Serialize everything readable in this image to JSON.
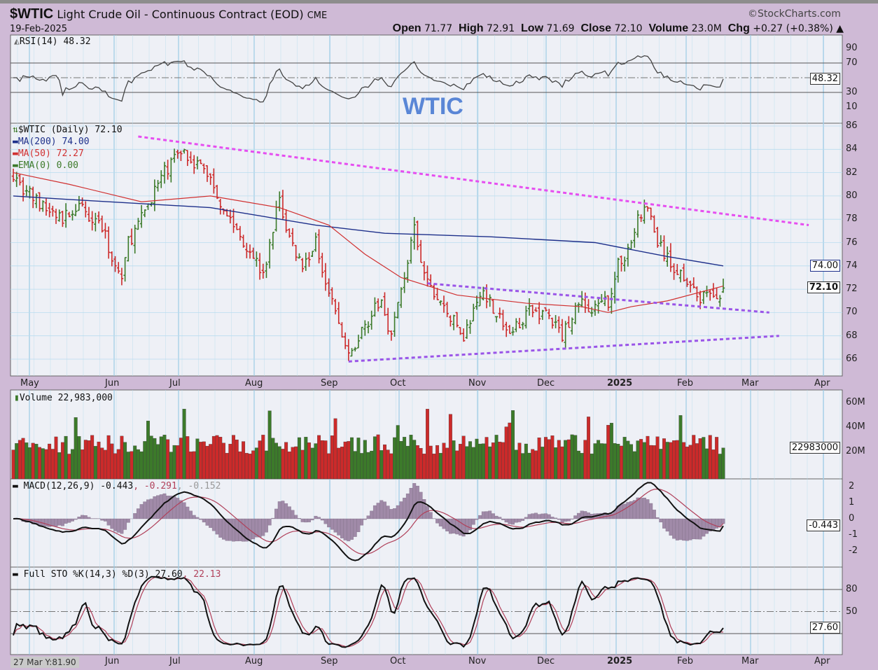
{
  "header": {
    "symbol": "$WTIC",
    "name": "Light Crude Oil - Continuous Contract (EOD)",
    "exchange": "CME",
    "date": "19-Feb-2025",
    "brand": "©StockCharts.com",
    "open_label": "Open",
    "open": "71.77",
    "high_label": "High",
    "high": "72.91",
    "low_label": "Low",
    "low": "71.69",
    "close_label": "Close",
    "close": "72.10",
    "volume_label": "Volume",
    "volume": "23.0M",
    "chg_label": "Chg",
    "chg": "+0.27 (+0.38%) ▲"
  },
  "annotation": "WTIC",
  "crosshair": "27 Mar Y:81.90",
  "colors": {
    "background": "#cfbad6",
    "plot": "#eef0f6",
    "grid": "#b8dcef",
    "up": "#3c7a2a",
    "down": "#cc2a2a",
    "ma200": "#1d2f8a",
    "ma50": "#d03030",
    "resistance": "#e64ef0",
    "channel": "#9a55e8",
    "signal": "#b0405a",
    "hist": "#a08aa8"
  },
  "rsi": {
    "label": "RSI(14) 48.32",
    "value_tag": "48.32",
    "ticks": [
      "90",
      "70",
      "30",
      "10"
    ]
  },
  "price": {
    "label": "$WTIC (Daily) 72.10",
    "ma200_label": "MA(200) 74.00",
    "ma50_label": "MA(50) 72.27",
    "ema_label": "EMA(0) 0.00",
    "ma200_tag": "74.00",
    "close_tag": "72.10",
    "ticks": [
      "86",
      "84",
      "82",
      "80",
      "78",
      "76",
      "74",
      "72",
      "70",
      "68",
      "66"
    ]
  },
  "volume": {
    "label": "Volume 22,983,000",
    "value_tag": "22983000",
    "ticks": [
      "60M",
      "40M",
      "20M"
    ]
  },
  "macd": {
    "label_main": "MACD(12,26,9) -0.443",
    "label_signal": ", -0.291",
    "label_hist": ", -0.152",
    "value_tag": "-0.443",
    "ticks": [
      "2",
      "1",
      "0",
      "-1",
      "-2"
    ]
  },
  "sto": {
    "label_main": "Full STO %K(14,3) %D(3) 27.60",
    "label_d": ", 22.13",
    "value_tag": "27.60",
    "ticks": [
      "80",
      "50"
    ]
  },
  "months": [
    "May",
    "Jun",
    "Jul",
    "Aug",
    "Sep",
    "Oct",
    "Nov",
    "Dec",
    "2025",
    "Feb",
    "Mar",
    "Apr"
  ],
  "chart_data": {
    "type": "candlestick",
    "title": "$WTIC Light Crude Oil - Continuous Contract (EOD) CME",
    "x_unit": "trading day index (May 2024 – 19 Feb 2025)",
    "ylim": [
      65,
      86
    ],
    "key_closes": [
      [
        0,
        82
      ],
      [
        2,
        81
      ],
      [
        9,
        79
      ],
      [
        15,
        78
      ],
      [
        19,
        79
      ],
      [
        26,
        78
      ],
      [
        31,
        74
      ],
      [
        33,
        73
      ],
      [
        35,
        76
      ],
      [
        39,
        78
      ],
      [
        42,
        80
      ],
      [
        46,
        82
      ],
      [
        51,
        84
      ],
      [
        55,
        83
      ],
      [
        59,
        82
      ],
      [
        64,
        79
      ],
      [
        68,
        77
      ],
      [
        73,
        75
      ],
      [
        76,
        73
      ],
      [
        81,
        80
      ],
      [
        83,
        77
      ],
      [
        88,
        74
      ],
      [
        92,
        76
      ],
      [
        96,
        72
      ],
      [
        100,
        68
      ],
      [
        102,
        66
      ],
      [
        107,
        69
      ],
      [
        112,
        71
      ],
      [
        115,
        68
      ],
      [
        118,
        72
      ],
      [
        122,
        77
      ],
      [
        124,
        74
      ],
      [
        127,
        72
      ],
      [
        132,
        70
      ],
      [
        137,
        68
      ],
      [
        143,
        72
      ],
      [
        147,
        70
      ],
      [
        151,
        68
      ],
      [
        156,
        70
      ],
      [
        162,
        70
      ],
      [
        167,
        68
      ],
      [
        172,
        71
      ],
      [
        176,
        70
      ],
      [
        181,
        71
      ],
      [
        184,
        74
      ],
      [
        188,
        76
      ],
      [
        190,
        78
      ],
      [
        193,
        79
      ],
      [
        196,
        76
      ],
      [
        200,
        74
      ],
      [
        205,
        73
      ],
      [
        208,
        71
      ],
      [
        211,
        72
      ],
      [
        213,
        71
      ],
      [
        216,
        72.1
      ]
    ],
    "ma200": [
      [
        0,
        80
      ],
      [
        17,
        79.7
      ],
      [
        60,
        79
      ],
      [
        92,
        77.5
      ],
      [
        113,
        76.8
      ],
      [
        145,
        76.5
      ],
      [
        177,
        76
      ],
      [
        199,
        74.8
      ],
      [
        216,
        74
      ]
    ],
    "ma50": [
      [
        0,
        82
      ],
      [
        17,
        81
      ],
      [
        39,
        79.5
      ],
      [
        60,
        80
      ],
      [
        81,
        79
      ],
      [
        96,
        77.5
      ],
      [
        107,
        75
      ],
      [
        118,
        73
      ],
      [
        135,
        71.5
      ],
      [
        156,
        70.8
      ],
      [
        173,
        70.5
      ],
      [
        181,
        70
      ],
      [
        188,
        70.5
      ],
      [
        199,
        71
      ],
      [
        216,
        72.27
      ]
    ],
    "trendlines": [
      {
        "name": "resistance",
        "from": [
          38,
          85.1
        ],
        "to": [
          242,
          77.5
        ]
      },
      {
        "name": "channel-upper",
        "from": [
          126,
          72.5
        ],
        "to": [
          230,
          70.0
        ]
      },
      {
        "name": "channel-lower",
        "from": [
          102,
          65.8
        ],
        "to": [
          233,
          68.0
        ]
      }
    ],
    "last": {
      "close": 72.1,
      "ma200": 74.0,
      "ma50": 72.27,
      "rsi": 48.32,
      "volume": 22983000,
      "macd": -0.443,
      "signal": -0.291,
      "hist": -0.152,
      "sto_k": 27.6,
      "sto_d": 22.13
    }
  }
}
